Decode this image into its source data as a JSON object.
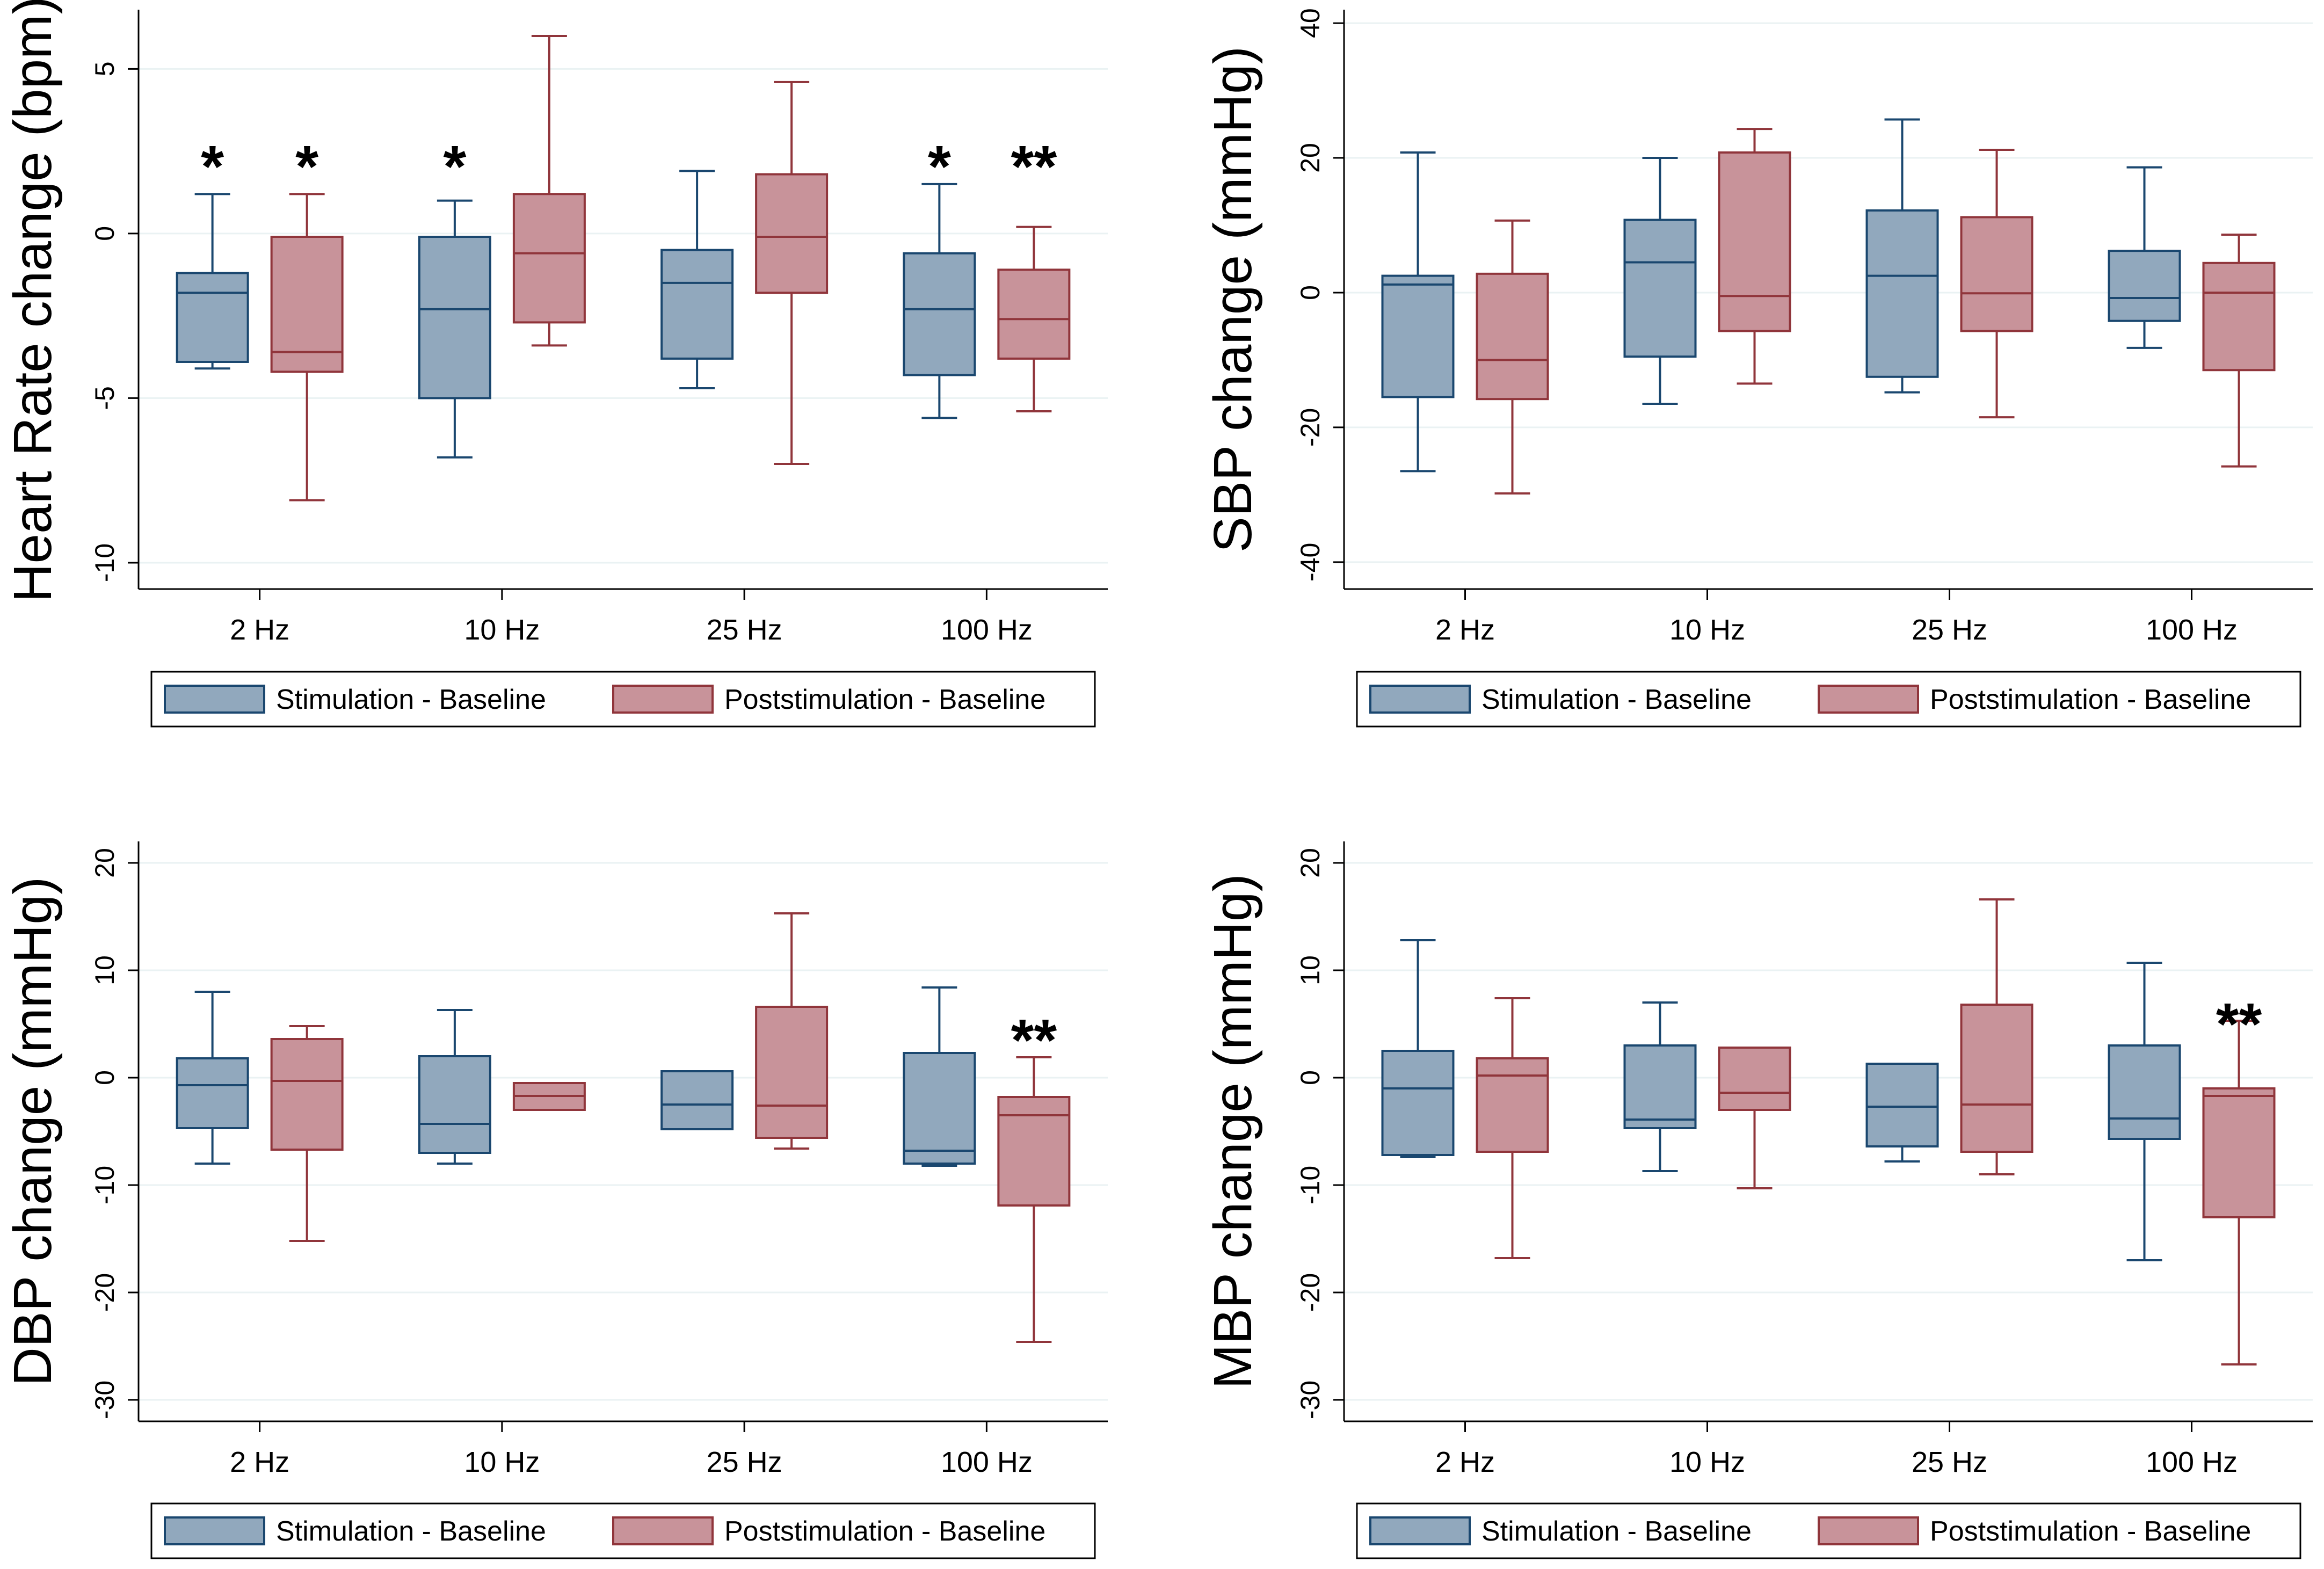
{
  "colors": {
    "stim_fill": "#91a8bd",
    "stim_line": "#1a476f",
    "post_fill": "#c8939a",
    "post_line": "#90353b",
    "grid": "#eaf2f3",
    "axis": "#000000"
  },
  "chart_data": [
    {
      "type": "box",
      "title": "",
      "ylabel": "Heart Rate change (bpm)",
      "xlabel": "",
      "categories": [
        "2 Hz",
        "10 Hz",
        "25 Hz",
        "100 Hz"
      ],
      "ylim": [
        -10.8,
        6.8
      ],
      "yticks": [
        -10,
        -5,
        0,
        5
      ],
      "ytick_labels": [
        "-10",
        "-5",
        "0",
        "5"
      ],
      "series": [
        {
          "name": "Stimulation - Baseline",
          "boxes": [
            {
              "whislo": -4.1,
              "q1": -3.9,
              "med": -1.8,
              "q3": -1.2,
              "whishi": 1.2
            },
            {
              "whislo": -6.8,
              "q1": -5.0,
              "med": -2.3,
              "q3": -0.1,
              "whishi": 1.0
            },
            {
              "whislo": -4.7,
              "q1": -3.8,
              "med": -1.5,
              "q3": -0.5,
              "whishi": 1.9
            },
            {
              "whislo": -5.6,
              "q1": -4.3,
              "med": -2.3,
              "q3": -0.6,
              "whishi": 1.5
            }
          ]
        },
        {
          "name": "Poststimulation - Baseline",
          "boxes": [
            {
              "whislo": -8.1,
              "q1": -4.2,
              "med": -3.6,
              "q3": -0.1,
              "whishi": 1.2
            },
            {
              "whislo": -3.4,
              "q1": -2.7,
              "med": -0.6,
              "q3": 1.2,
              "whishi": 6.0
            },
            {
              "whislo": -7.0,
              "q1": -1.8,
              "med": -0.1,
              "q3": 1.8,
              "whishi": 4.6
            },
            {
              "whislo": -5.4,
              "q1": -3.8,
              "med": -2.6,
              "q3": -1.1,
              "whishi": 0.2
            }
          ]
        }
      ],
      "annotations": [
        {
          "text": "*",
          "category": 0,
          "series": 0,
          "y": 2.3
        },
        {
          "text": "*",
          "category": 0,
          "series": 1,
          "y": 2.3
        },
        {
          "text": "*",
          "category": 1,
          "series": 0,
          "y": 2.3
        },
        {
          "text": "*",
          "category": 3,
          "series": 0,
          "y": 2.3
        },
        {
          "text": "**",
          "category": 3,
          "series": 1,
          "y": 2.3
        }
      ],
      "legend": {
        "position": "bottom",
        "labels": [
          "Stimulation - Baseline",
          "Poststimulation - Baseline"
        ]
      }
    },
    {
      "type": "box",
      "title": "",
      "ylabel": "SBP change (mmHg)",
      "xlabel": "",
      "categories": [
        "2 Hz",
        "10 Hz",
        "25 Hz",
        "100 Hz"
      ],
      "ylim": [
        -44,
        42
      ],
      "yticks": [
        -40,
        -20,
        0,
        20,
        40
      ],
      "ytick_labels": [
        "-40",
        "-20",
        "0",
        "20",
        "40"
      ],
      "series": [
        {
          "name": "Stimulation - Baseline",
          "boxes": [
            {
              "whislo": -26.5,
              "q1": -15.5,
              "med": 1.2,
              "q3": 2.5,
              "whishi": 20.8
            },
            {
              "whislo": -16.5,
              "q1": -9.5,
              "med": 4.5,
              "q3": 10.8,
              "whishi": 20.0
            },
            {
              "whislo": -14.8,
              "q1": -12.5,
              "med": 2.5,
              "q3": 12.2,
              "whishi": 25.7
            },
            {
              "whislo": -8.2,
              "q1": -4.2,
              "med": -0.8,
              "q3": 6.2,
              "whishi": 18.6
            }
          ]
        },
        {
          "name": "Poststimulation - Baseline",
          "boxes": [
            {
              "whislo": -29.8,
              "q1": -15.8,
              "med": -10.0,
              "q3": 2.8,
              "whishi": 10.7
            },
            {
              "whislo": -13.5,
              "q1": -5.7,
              "med": -0.5,
              "q3": 20.8,
              "whishi": 24.3
            },
            {
              "whislo": -18.5,
              "q1": -5.7,
              "med": -0.1,
              "q3": 11.2,
              "whishi": 21.2
            },
            {
              "whislo": -25.8,
              "q1": -11.5,
              "med": 0.0,
              "q3": 4.4,
              "whishi": 8.6
            }
          ]
        }
      ],
      "annotations": [],
      "legend": {
        "position": "bottom",
        "labels": [
          "Stimulation - Baseline",
          "Poststimulation - Baseline"
        ]
      }
    },
    {
      "type": "box",
      "title": "",
      "ylabel": "DBP change (mmHg)",
      "xlabel": "",
      "categories": [
        "2 Hz",
        "10 Hz",
        "25 Hz",
        "100 Hz"
      ],
      "ylim": [
        -32,
        22
      ],
      "yticks": [
        -30,
        -20,
        -10,
        0,
        10,
        20
      ],
      "ytick_labels": [
        "-30",
        "-20",
        "-10",
        "0",
        "10",
        "20"
      ],
      "series": [
        {
          "name": "Stimulation - Baseline",
          "boxes": [
            {
              "whislo": -8.0,
              "q1": -4.7,
              "med": -0.7,
              "q3": 1.8,
              "whishi": 8.0
            },
            {
              "whislo": -8.0,
              "q1": -7.0,
              "med": -4.3,
              "q3": 2.0,
              "whishi": 6.3
            },
            {
              "whislo": -4.8,
              "q1": -4.8,
              "med": -2.5,
              "q3": 0.6,
              "whishi": 0.6
            },
            {
              "whislo": -8.2,
              "q1": -8.0,
              "med": -6.8,
              "q3": 2.3,
              "whishi": 8.4
            }
          ]
        },
        {
          "name": "Poststimulation - Baseline",
          "boxes": [
            {
              "whislo": -15.2,
              "q1": -6.7,
              "med": -0.3,
              "q3": 3.6,
              "whishi": 4.8
            },
            {
              "whislo": -3.0,
              "q1": -3.0,
              "med": -1.7,
              "q3": -0.5,
              "whishi": -0.5
            },
            {
              "whislo": -6.6,
              "q1": -5.6,
              "med": -2.6,
              "q3": 6.6,
              "whishi": 15.3
            },
            {
              "whislo": -24.6,
              "q1": -11.9,
              "med": -3.5,
              "q3": -1.8,
              "whishi": 1.9
            }
          ]
        }
      ],
      "annotations": [
        {
          "text": "**",
          "category": 3,
          "series": 1,
          "y": 4.3
        }
      ],
      "legend": {
        "position": "bottom",
        "labels": [
          "Stimulation - Baseline",
          "Poststimulation - Baseline"
        ]
      }
    },
    {
      "type": "box",
      "title": "",
      "ylabel": "MBP change (mmHg)",
      "xlabel": "",
      "categories": [
        "2 Hz",
        "10 Hz",
        "25 Hz",
        "100 Hz"
      ],
      "ylim": [
        -32,
        22
      ],
      "yticks": [
        -30,
        -20,
        -10,
        0,
        10,
        20
      ],
      "ytick_labels": [
        "-30",
        "-20",
        "-10",
        "0",
        "10",
        "20"
      ],
      "series": [
        {
          "name": "Stimulation - Baseline",
          "boxes": [
            {
              "whislo": -7.4,
              "q1": -7.2,
              "med": -1.0,
              "q3": 2.5,
              "whishi": 12.8
            },
            {
              "whislo": -8.7,
              "q1": -4.7,
              "med": -3.9,
              "q3": 3.0,
              "whishi": 7.0
            },
            {
              "whislo": -7.8,
              "q1": -6.4,
              "med": -2.7,
              "q3": 1.3,
              "whishi": 1.3
            },
            {
              "whislo": -17.0,
              "q1": -5.7,
              "med": -3.8,
              "q3": 3.0,
              "whishi": 10.7
            }
          ]
        },
        {
          "name": "Poststimulation - Baseline",
          "boxes": [
            {
              "whislo": -16.8,
              "q1": -6.9,
              "med": 0.2,
              "q3": 1.8,
              "whishi": 7.4
            },
            {
              "whislo": -10.3,
              "q1": -3.0,
              "med": -1.4,
              "q3": 2.8,
              "whishi": 2.8
            },
            {
              "whislo": -9.0,
              "q1": -6.9,
              "med": -2.5,
              "q3": 6.8,
              "whishi": 16.6
            },
            {
              "whislo": -26.7,
              "q1": -13.0,
              "med": -1.7,
              "q3": -1.0,
              "whishi": 5.3
            }
          ]
        }
      ],
      "annotations": [
        {
          "text": "**",
          "category": 3,
          "series": 1,
          "y": 5.8
        }
      ],
      "legend": {
        "position": "bottom",
        "labels": [
          "Stimulation - Baseline",
          "Poststimulation - Baseline"
        ]
      }
    }
  ]
}
